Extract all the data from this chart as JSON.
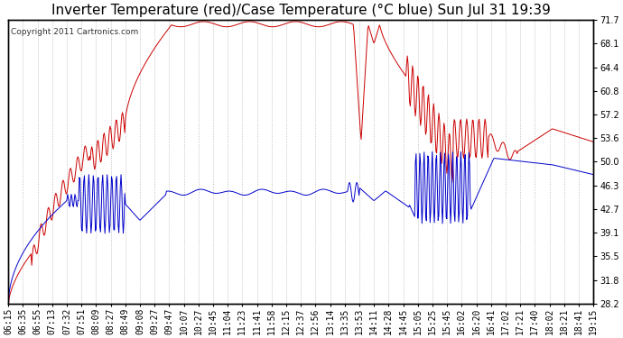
{
  "title": "Inverter Temperature (red)/Case Temperature (°C blue) Sun Jul 31 19:39",
  "copyright": "Copyright 2011 Cartronics.com",
  "ylabel_right_ticks": [
    28.2,
    31.8,
    35.5,
    39.1,
    42.7,
    46.3,
    50.0,
    53.6,
    57.2,
    60.8,
    64.4,
    68.1,
    71.7
  ],
  "x_tick_labels": [
    "06:15",
    "06:35",
    "06:55",
    "07:13",
    "07:32",
    "07:51",
    "08:09",
    "08:27",
    "08:49",
    "09:08",
    "09:27",
    "09:47",
    "10:07",
    "10:27",
    "10:45",
    "11:04",
    "11:23",
    "11:41",
    "11:58",
    "12:15",
    "12:37",
    "12:56",
    "13:14",
    "13:35",
    "13:53",
    "14:11",
    "14:28",
    "14:45",
    "15:05",
    "15:25",
    "15:45",
    "16:02",
    "16:20",
    "16:41",
    "17:02",
    "17:21",
    "17:40",
    "18:02",
    "18:21",
    "18:41",
    "19:15"
  ],
  "ymin": 28.2,
  "ymax": 71.7,
  "bg_color": "#ffffff",
  "grid_color": "#aaaaaa",
  "red_color": "#cc0000",
  "blue_color": "#0000cc",
  "title_fontsize": 11,
  "tick_fontsize": 7,
  "copyright_fontsize": 6.5
}
